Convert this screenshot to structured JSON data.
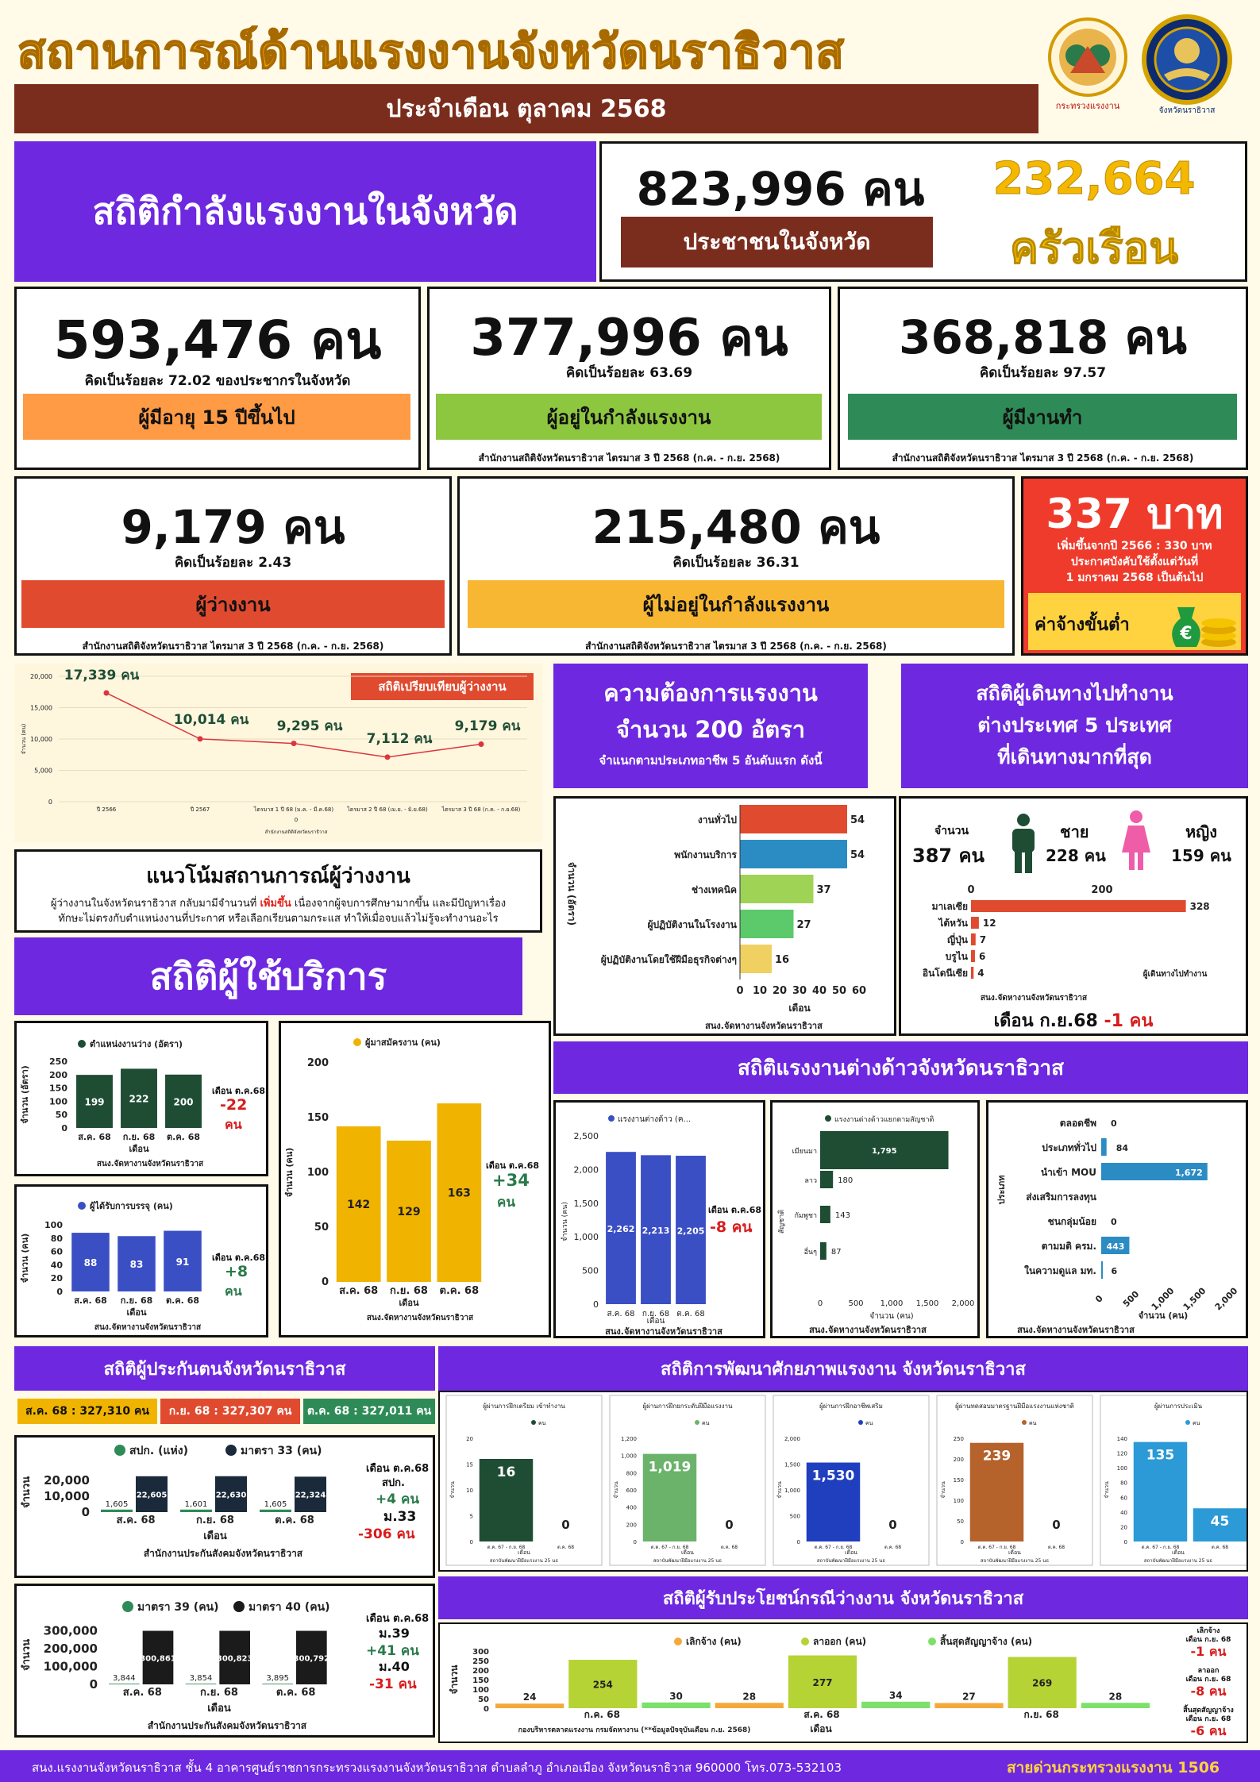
{
  "header": {
    "title": "สถานการณ์ด้านแรงงานจังหวัดนราธิวาส",
    "month_label": "ประจำเดือน ตุลาคม 2568",
    "logo1_text": "กระทรวงแรงงาน",
    "logo2_text": "จังหวัดนราธิวาส"
  },
  "colors": {
    "purple": "#6d28e0",
    "brown": "#7b2d1d",
    "red": "#ef3b2c",
    "green": "#2a7a4b",
    "gold": "#f0b400"
  },
  "workforce": {
    "title": "สถิติกำลังแรงงานในจังหวัด",
    "population": "823,996 คน",
    "population_label": "ประชาชนในจังหวัด",
    "households_num": "232,664",
    "households_unit": "ครัวเรือน"
  },
  "stats": [
    {
      "value": "593,476 คน",
      "pct": "คิดเป็นร้อยละ 72.02 ของประชากรในจังหวัด",
      "label": "ผู้มีอายุ 15 ปีขึ้นไป",
      "src": "",
      "color": "#ff9a45"
    },
    {
      "value": "377,996 คน",
      "pct": "คิดเป็นร้อยละ 63.69",
      "label": "ผู้อยู่ในกำลังแรงงาน",
      "src": "สำนักงานสถิติจังหวัดนราธิวาส ไตรมาส 3 ปี 2568 (ก.ค. - ก.ย. 2568)",
      "color": "#8dc63f"
    },
    {
      "value": "368,818 คน",
      "pct": "คิดเป็นร้อยละ 97.57",
      "label": "ผู้มีงานทำ",
      "src": "สำนักงานสถิติจังหวัดนราธิวาส ไตรมาส 3 ปี 2568 (ก.ค. - ก.ย. 2568)",
      "color": "#2e8b57"
    },
    {
      "value": "9,179 คน",
      "pct": "คิดเป็นร้อยละ 2.43",
      "label": "ผู้ว่างงาน",
      "src": "สำนักงานสถิติจังหวัดนราธิวาส ไตรมาส 3 ปี 2568 (ก.ค. - ก.ย. 2568)",
      "color": "#e04a2f"
    },
    {
      "value": "215,480 คน",
      "pct": "คิดเป็นร้อยละ 36.31",
      "label": "ผู้ไม่อยู่ในกำลังแรงงาน",
      "src": "สำนักงานสถิติจังหวัดนราธิวาส ไตรมาส 3 ปี 2568 (ก.ค. - ก.ย. 2568)",
      "color": "#f7b733"
    }
  ],
  "wage": {
    "value": "337 บาท",
    "note1": "เพิ่มขึ้นจากปี 2566 : 330 บาท",
    "note2": "ประกาศบังคับใช้ตั้งแต่วันที่",
    "note3": "1 มกราคม 2568 เป็นต้นไป",
    "label": "ค่าจ้างขั้นต่ำ",
    "coin_symbol": "€"
  },
  "unemp_trend": {
    "badge": "สถิติเปรียบเทียบผู้ว่างงาน",
    "source": "สำนักงานสถิติจังหวัดนราธิวาส",
    "ylabel": "จำนวน (คน)",
    "xlabel": "0"
  },
  "trend_title": "แนวโน้มสถานการณ์ผู้ว่างงาน",
  "trend_text1a": "ผู้ว่างงานในจังหวัดนราธิวาส กลับมามีจำนวนที่ ",
  "trend_text1b": "เพิ่มขึ้น",
  "trend_text1c": " เนื่องจากผู้จบการศึกษามากขึ้น และมีปัญหาเรื่อง",
  "trend_text2": "ทักษะไม่ตรงกับตำแหน่งงานที่ประกาศ หรือเลือกเรียนตามกระแส ทำให้เมื่อจบแล้วไม่รู้จะทำงานอะไร",
  "demand": {
    "l1": "ความต้องการแรงงาน",
    "l2": "จำนวน 200 อัตรา",
    "l3": "จำแนกตามประเภทอาชีพ 5 อันดับแรก ดังนี้",
    "ylabel": "จำนวน (อัตรา)",
    "xlabel": "เดือน",
    "source": "สนง.จัดหางานจังหวัดนราธิวาส"
  },
  "abroad": {
    "l1": "สถิติผู้เดินทางไปทำงาน",
    "l2": "ต่างประเทศ 5 ประเทศ",
    "l3": "ที่เดินทางมากที่สุด",
    "total_label": "จำนวน",
    "total": "387 คน",
    "male_label": "ชาย",
    "male": "228 คน",
    "female_label": "หญิง",
    "female": "159 คน",
    "legend": "ผู้เดินทางไปทำงาน",
    "source": "สนง.จัดหางานจังหวัดนราธิวาส",
    "change_a": "เดือน ก.ย.68 ",
    "change_b": "-1 คน"
  },
  "service_title": "สถิติผู้ใช้บริการ",
  "service_source": "สนง.จัดหางานจังหวัดนราธิวาส",
  "service_xlabel": "เดือน",
  "service_ylabel": "จำนวน (คน)",
  "vacancy": {
    "title": "ตำแหน่งงานว่าง (อัตรา)",
    "ylabel": "จำนวน (อัตรา)",
    "change_l": "เดือน ต.ค.68",
    "change_v": "-22",
    "change_u": "คน"
  },
  "placed": {
    "title": "ผู้ได้รับการบรรจุ (คน)",
    "change_l": "เดือน ต.ค.68",
    "change_v": "+8",
    "change_u": "คน"
  },
  "applicants": {
    "title": "ผู้มาสมัครงาน (คน)",
    "change_l": "เดือน ต.ค.68",
    "change_v": "+34",
    "change_u": "คน"
  },
  "foreign_title": "สถิติแรงงานต่างด้าวจังหวัดนราธิวาส",
  "foreign_total": {
    "title": "แรงงานต่างด้าว (ค...",
    "change_l": "เดือน ต.ค.68",
    "change_v": "-8 คน",
    "source": "สนง.จัดหางานจังหวัดนราธิวาส"
  },
  "foreign_nat": {
    "title": "แรงงานต่างด้าวแยกตามสัญชาติ",
    "ylabel": "สัญชาติ",
    "xlabel": "จำนวน (คน)",
    "source": "สนง.จัดหางานจังหวัดนราธิวาส"
  },
  "foreign_type": {
    "ylabel": "ประเภท",
    "xlabel": "จำนวน (คน)",
    "source": "สนง.จัดหางานจังหวัดนราธิวาส"
  },
  "insured": {
    "title": "สถิติผู้ประกันตนจังหวัดนราธิวาส",
    "aug": "ส.ค. 68 : 327,310 คน",
    "sep": "ก.ย. 68 : 327,307 คน",
    "oct": "ต.ค. 68 : 327,011 คน",
    "source": "สำนักงานประกันสังคมจังหวัดนราธิวาส",
    "c1_l1": "เดือน ต.ค.68",
    "c1_l2": "สปก.",
    "c1_l3": "+4 คน",
    "c1_l4": "ม.33",
    "c1_l5": "-306 คน",
    "c2_l1": "เดือน ต.ค.68",
    "c2_l2": "ม.39",
    "c2_l3": "+41 คน",
    "c2_l4": "ม.40",
    "c2_l5": "-31 คน"
  },
  "dev": {
    "title": "สถิติการพัฒนาศักยภาพแรงงาน จังหวัดนราธิวาส",
    "legend": "คน",
    "xlabel": "เดือน",
    "ylabel": "จำนวน",
    "source": "สถาบันพัฒนาฝีมือแรงงาน 25 นธ"
  },
  "benefit": {
    "title": "สถิติผู้รับประโยชน์กรณีว่างงาน จังหวัดนราธิวาส",
    "source": "กองบริหารตลาดแรงงาน กรมจัดหางาน (**ข้อมูลปัจจุบันเดือน ก.ย. 2568)",
    "n1": "เลิกจ้าง",
    "n1b": "เดือน ก.ย. 68",
    "n1c": "-1 คน",
    "n2": "ลาออก",
    "n2b": "เดือน ก.ย. 68",
    "n2c": "-8 คน",
    "n3": "สิ้นสุดสัญญาจ้าง",
    "n3b": "เดือน ก.ย. 68",
    "n3c": "-6 คน"
  },
  "footer": {
    "address": "สนง.แรงงานจังหวัดนราธิวาส ชั้น 4 อาคารศูนย์ราชการกระทรวงแรงงานจังหวัดนราธิวาส ตำบลลำภู อำเภอเมือง จังหวัดนราธิวาส 960000 โทร.073-532103",
    "hotline": "สายด่วนกระทรวงแรงงาน 1506"
  },
  "chart_data": [
    {
      "id": "unemployment_trend",
      "type": "line",
      "categories": [
        "ปี 2566",
        "ปี 2567",
        "ไตรมาส 1 ปี 68 (ม.ค. - มี.ค.68)",
        "ไตรมาส 2 ปี 68 (เม.ย. - มิ.ย.68)",
        "ไตรมาส 3 ปี 68 (ก.ค. - ก.ย.68)"
      ],
      "values": [
        17339,
        10014,
        9295,
        7112,
        9179
      ],
      "labels": [
        "17,339 คน",
        "10,014 คน",
        "9,295 คน",
        "7,112 คน",
        "9,179 คน"
      ],
      "ylim": [
        0,
        20000
      ],
      "yticks": [
        "0",
        "5,000",
        "10,000",
        "15,000",
        "20,000"
      ],
      "color": "#d9363e"
    },
    {
      "id": "labor_demand",
      "type": "bar",
      "orientation": "horizontal",
      "categories": [
        "งานทั่วไป",
        "พนักงานบริการ",
        "ช่างเทคนิค",
        "ผู้ปฏิบัติงานในโรงงาน",
        "ผู้ปฏิบัติงานโดยใช้ฝีมือธุรกิจต่างๆ"
      ],
      "values": [
        54,
        54,
        37,
        27,
        16
      ],
      "colors": [
        "#e04a2f",
        "#2b8cc4",
        "#9fd356",
        "#5cc96a",
        "#f0d060"
      ],
      "xlim": [
        0,
        60
      ],
      "xticks": [
        "0",
        "10",
        "20",
        "30",
        "40",
        "50",
        "60"
      ]
    },
    {
      "id": "abroad_country",
      "type": "bar",
      "orientation": "horizontal",
      "categories": [
        "มาเลเซีย",
        "ไต้หวัน",
        "ญี่ปุ่น",
        "บรูไน",
        "อินโดนีเซีย"
      ],
      "values": [
        328,
        12,
        7,
        6,
        4
      ],
      "xlim": [
        0,
        400
      ],
      "xticks": [
        "0",
        "200"
      ],
      "color": "#e04a2f"
    },
    {
      "id": "vacancies",
      "type": "bar",
      "categories": [
        "ส.ค. 68",
        "ก.ย. 68",
        "ต.ค. 68"
      ],
      "values": [
        199,
        222,
        200
      ],
      "ylim": [
        0,
        250
      ],
      "yticks": [
        "0",
        "50",
        "100",
        "150",
        "200",
        "250"
      ],
      "color": "#1e4d34"
    },
    {
      "id": "placements",
      "type": "bar",
      "categories": [
        "ส.ค. 68",
        "ก.ย. 68",
        "ต.ค. 68"
      ],
      "values": [
        88,
        83,
        91
      ],
      "ylim": [
        0,
        100
      ],
      "yticks": [
        "0",
        "20",
        "40",
        "60",
        "80",
        "100"
      ],
      "color": "#3b4fc4"
    },
    {
      "id": "applicants",
      "type": "bar",
      "categories": [
        "ส.ค. 68",
        "ก.ย. 68",
        "ต.ค. 68"
      ],
      "values": [
        142,
        129,
        163
      ],
      "ylim": [
        0,
        200
      ],
      "yticks": [
        "0",
        "50",
        "100",
        "150",
        "200"
      ],
      "color": "#f0b400"
    },
    {
      "id": "foreign_workers",
      "type": "bar",
      "categories": [
        "ส.ค. 68",
        "ก.ย. 68",
        "ต.ค. 68"
      ],
      "values": [
        2262,
        2213,
        2205
      ],
      "labels": [
        "2,262",
        "2,213",
        "2,205"
      ],
      "ylim": [
        0,
        2500
      ],
      "yticks": [
        "0",
        "500",
        "1,000",
        "1,500",
        "2,000",
        "2,500"
      ],
      "color": "#3b4fc4"
    },
    {
      "id": "foreign_nationality",
      "type": "bar",
      "orientation": "horizontal",
      "categories": [
        "เมียนมา",
        "ลาว",
        "กัมพูชา",
        "อื่นๆ"
      ],
      "values": [
        1795,
        180,
        143,
        87
      ],
      "labels": [
        "1,795",
        "180",
        "143",
        "87"
      ],
      "xlim": [
        0,
        2000
      ],
      "xticks": [
        "0",
        "500",
        "1,000",
        "1,500",
        "2,000"
      ],
      "color": "#1e4d34"
    },
    {
      "id": "foreign_type",
      "type": "bar",
      "orientation": "horizontal",
      "categories": [
        "ตลอดชีพ",
        "ประเภททั่วไป",
        "นำเข้า MOU",
        "ส่งเสริมการลงทุน",
        "ชนกลุ่มน้อย",
        "ตามมติ ครม.",
        "ในความดูแล มท."
      ],
      "values": [
        0,
        84,
        1672,
        0,
        0,
        443,
        6
      ],
      "labels": [
        "0",
        "84",
        "1,672",
        "",
        "0",
        "443",
        "6"
      ],
      "xlim": [
        0,
        2000
      ],
      "xticks": [
        "0",
        "500",
        "1,000",
        "1,500",
        "2,000"
      ],
      "color": "#2b8cc4"
    },
    {
      "id": "insured_33",
      "type": "bar",
      "categories": [
        "ส.ค. 68",
        "ก.ย. 68",
        "ต.ค. 68"
      ],
      "series": [
        {
          "name": "สปก. (แห่ง)",
          "values": [
            1605,
            1601,
            1605
          ],
          "labels": [
            "1,605",
            "1,601",
            "1,605"
          ],
          "color": "#2e8b57"
        },
        {
          "name": "มาตรา 33 (คน)",
          "values": [
            22605,
            22630,
            22324
          ],
          "labels": [
            "22,605",
            "22,630",
            "22,324"
          ],
          "color": "#1b2a3a"
        }
      ],
      "ylim": [
        0,
        25000
      ],
      "yticks": [
        "0",
        "10,000",
        "20,000"
      ]
    },
    {
      "id": "insured_39_40",
      "type": "bar",
      "categories": [
        "ส.ค. 68",
        "ก.ย. 68",
        "ต.ค. 68"
      ],
      "series": [
        {
          "name": "มาตรา 39 (คน)",
          "values": [
            3844,
            3854,
            3895
          ],
          "labels": [
            "3,844",
            "3,854",
            "3,895"
          ],
          "color": "#2e8b57"
        },
        {
          "name": "มาตรา 40 (คน)",
          "values": [
            300861,
            300823,
            300792
          ],
          "labels": [
            "300,861",
            "300,823",
            "300,792"
          ],
          "color": "#1b1b1b"
        }
      ],
      "ylim": [
        0,
        330000
      ],
      "yticks": [
        "0",
        "100,000",
        "200,000",
        "300,000"
      ]
    },
    {
      "id": "dev_training_prep",
      "type": "bar",
      "title": "ผู้ผ่านการฝึกเตรียม เข้าทำงาน",
      "categories": [
        "ต.ค. 67 - ก.ย. 68",
        "ต.ค. 68"
      ],
      "values": [
        16,
        0
      ],
      "ylim": [
        0,
        20
      ],
      "yticks": [
        "0",
        "5",
        "10",
        "15",
        "20"
      ],
      "color": "#1e4d34"
    },
    {
      "id": "dev_upskill",
      "type": "bar",
      "title": "ผู้ผ่านการฝึกยกระดับฝีมือแรงงาน",
      "categories": [
        "ต.ค. 67 - ก.ย. 68",
        "ต.ค. 68"
      ],
      "values": [
        1019,
        0
      ],
      "labels": [
        "1,019",
        "0"
      ],
      "ylim": [
        0,
        1200
      ],
      "yticks": [
        "0",
        "200",
        "400",
        "600",
        "800",
        "1,000",
        "1,200"
      ],
      "color": "#6bb36b"
    },
    {
      "id": "dev_supplementary",
      "type": "bar",
      "title": "ผู้ผ่านการฝึกอาชีพเสริม",
      "categories": [
        "ต.ค. 67 - ก.ย. 68",
        "ต.ค. 68"
      ],
      "values": [
        1530,
        0
      ],
      "labels": [
        "1,530",
        "0"
      ],
      "ylim": [
        0,
        2000
      ],
      "yticks": [
        "0",
        "500",
        "1,000",
        "1,500",
        "2,000"
      ],
      "color": "#1f3fbf"
    },
    {
      "id": "dev_standard_test",
      "type": "bar",
      "title": "ผู้ผ่านทดสอบมาตรฐานฝีมือแรงงานแห่งชาติ",
      "categories": [
        "ต.ค. 67 - ก.ย. 68",
        "ต.ค. 68"
      ],
      "values": [
        239,
        0
      ],
      "ylim": [
        0,
        250
      ],
      "yticks": [
        "0",
        "50",
        "100",
        "150",
        "200",
        "250"
      ],
      "color": "#b5622b"
    },
    {
      "id": "dev_assessment",
      "type": "bar",
      "title": "ผู้ผ่านการประเมิน",
      "categories": [
        "ต.ค. 67 - ก.ย. 68",
        "ต.ค. 68"
      ],
      "values": [
        135,
        45
      ],
      "ylim": [
        0,
        140
      ],
      "yticks": [
        "0",
        "20",
        "40",
        "60",
        "80",
        "100",
        "120",
        "140"
      ],
      "color": "#2b9ad6"
    },
    {
      "id": "unemployment_benefit",
      "type": "bar",
      "categories": [
        "ก.ค. 68",
        "ส.ค. 68",
        "ก.ย. 68"
      ],
      "series": [
        {
          "name": "เลิกจ้าง (คน)",
          "values": [
            24,
            28,
            27
          ],
          "color": "#f4a93a"
        },
        {
          "name": "ลาออก (คน)",
          "values": [
            254,
            277,
            269
          ],
          "color": "#b5d334"
        },
        {
          "name": "สิ้นสุดสัญญาจ้าง (คน)",
          "values": [
            30,
            34,
            28
          ],
          "color": "#7de06a"
        }
      ],
      "ylim": [
        0,
        300
      ],
      "yticks": [
        "0",
        "50",
        "100",
        "150",
        "200",
        "250",
        "300"
      ]
    }
  ]
}
